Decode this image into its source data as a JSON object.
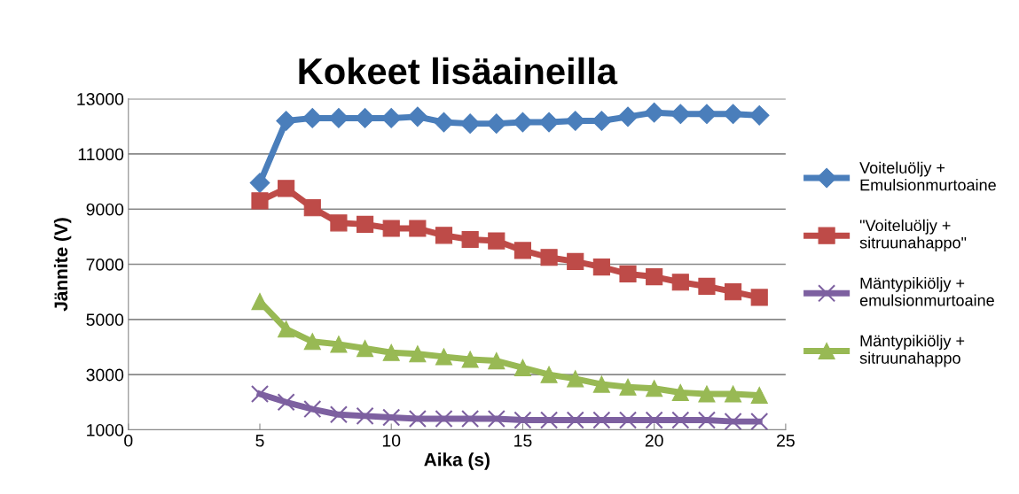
{
  "chart_data": {
    "type": "line",
    "title": "Kokeet lisäaineilla",
    "xlabel": "Aika (s)",
    "ylabel": "Jännite (V)",
    "x": [
      5,
      6,
      7,
      8,
      9,
      10,
      11,
      12,
      13,
      14,
      15,
      16,
      17,
      18,
      19,
      20,
      21,
      22,
      23,
      24
    ],
    "xlim": [
      0,
      25
    ],
    "xticks": [
      0,
      5,
      10,
      15,
      20,
      25
    ],
    "ylim": [
      1000,
      13000
    ],
    "yticks": [
      1000,
      3000,
      5000,
      7000,
      9000,
      11000,
      13000
    ],
    "grid": "y",
    "legend": "right",
    "series": [
      {
        "name": "Voiteluöljy + Emulsionmurtoaine",
        "color": "#4a7ebb",
        "marker": "diamond",
        "values": [
          9950,
          12200,
          12300,
          12300,
          12300,
          12300,
          12350,
          12150,
          12100,
          12100,
          12150,
          12150,
          12200,
          12200,
          12350,
          12500,
          12450,
          12450,
          12450,
          12400
        ]
      },
      {
        "name": "\"Voiteluöljy + sitruunahappo\"",
        "color": "#be4b48",
        "marker": "square",
        "values": [
          9300,
          9750,
          9050,
          8500,
          8450,
          8300,
          8300,
          8050,
          7900,
          7850,
          7500,
          7250,
          7100,
          6900,
          6650,
          6550,
          6350,
          6200,
          6000,
          5800
        ]
      },
      {
        "name": "Mäntypikiöljy + emulsionmurtoaine",
        "color": "#7d60a0",
        "marker": "cross",
        "values": [
          2300,
          2000,
          1750,
          1550,
          1500,
          1450,
          1400,
          1400,
          1400,
          1400,
          1350,
          1350,
          1350,
          1350,
          1350,
          1350,
          1350,
          1350,
          1300,
          1300
        ]
      },
      {
        "name": "Mäntypikiöljy + sitruunahappo",
        "color": "#98b954",
        "marker": "triangle",
        "values": [
          5650,
          4650,
          4200,
          4100,
          3950,
          3800,
          3750,
          3650,
          3550,
          3500,
          3250,
          3000,
          2850,
          2650,
          2550,
          2500,
          2350,
          2300,
          2300,
          2250
        ]
      }
    ]
  }
}
